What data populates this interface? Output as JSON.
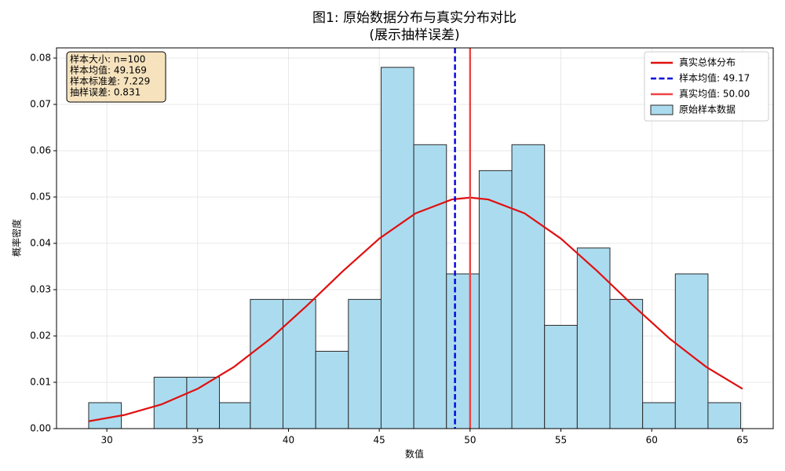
{
  "chart_data": {
    "type": "histogram",
    "title": "图1: 原始数据分布与真实分布对比",
    "subtitle": "(展示抽样误差)",
    "x_label": "数值",
    "y_label": "概率密度",
    "name": "原始样本数据",
    "color": "#abdbef",
    "edgecolor": "#2b2b2b",
    "bins": [
      29.0,
      30.8,
      32.6,
      34.4,
      36.2,
      37.9,
      39.7,
      41.5,
      43.3,
      45.1,
      46.9,
      48.7,
      50.5,
      52.3,
      54.1,
      55.9,
      57.7,
      59.5,
      61.3,
      63.1,
      64.9
    ],
    "values": [
      0.0056,
      0,
      0.0111,
      0.0111,
      0.0056,
      0.0279,
      0.0279,
      0.0167,
      0.0279,
      0.078,
      0.0613,
      0.0334,
      0.0557,
      0.0613,
      0.0223,
      0.039,
      0.0279,
      0.0056,
      0.0334,
      0.0056
    ],
    "curve": {
      "name": "真实总体分布",
      "color": "#e01010",
      "x": [
        29,
        31,
        33,
        35,
        37,
        39,
        41,
        43,
        45,
        47,
        49,
        50,
        51,
        53,
        55,
        57,
        59,
        61,
        63,
        65
      ],
      "values": [
        0.00159,
        0.00297,
        0.00522,
        0.0086,
        0.01332,
        0.01938,
        0.02649,
        0.03401,
        0.04103,
        0.04648,
        0.04948,
        0.04987,
        0.04948,
        0.04648,
        0.04103,
        0.03401,
        0.02649,
        0.01938,
        0.01332,
        0.0086
      ]
    },
    "vlines": [
      {
        "name": "样本均值: 49.17",
        "x": 49.169,
        "color": "#0000dd",
        "style": "dashed"
      },
      {
        "name": "真实均值: 50.00",
        "x": 50,
        "color": "#ee4444",
        "style": "solid"
      }
    ],
    "annotation": [
      "样本大小: n=100",
      "样本均值: 49.169",
      "样本标准差: 7.229",
      "抽样误差: 0.831"
    ],
    "xlim": [
      27.23,
      66.69
    ],
    "ylim": [
      0,
      0.0822
    ],
    "xticks": [
      30,
      35,
      40,
      45,
      50,
      55,
      60,
      65
    ],
    "yticks": [
      {
        "value": 0,
        "label": "0.00"
      },
      {
        "value": 0.01,
        "label": "0.01"
      },
      {
        "value": 0.02,
        "label": "0.02"
      },
      {
        "value": 0.03,
        "label": "0.03"
      },
      {
        "value": 0.04,
        "label": "0.04"
      },
      {
        "value": 0.05,
        "label": "0.05"
      },
      {
        "value": 0.06,
        "label": "0.06"
      },
      {
        "value": 0.07,
        "label": "0.07"
      },
      {
        "value": 0.08,
        "label": "0.08"
      }
    ],
    "grid": true,
    "legend": "upper right"
  }
}
